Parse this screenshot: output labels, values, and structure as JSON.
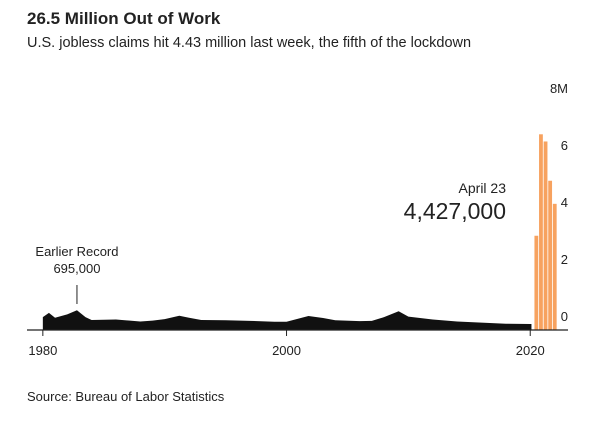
{
  "chart_data": {
    "type": "area",
    "title": "26.5 Million Out of Work",
    "subtitle": "U.S. jobless claims hit 4.43 million last week, the fifth of the lockdown",
    "source": "Source: Bureau of Labor Statistics",
    "annotations": [
      {
        "lines": [
          "Earlier Record",
          "695,000"
        ],
        "x": 1982.8
      },
      {
        "lines": [
          "April 23",
          "4,427,000"
        ]
      }
    ],
    "x": [
      1980,
      1980.5,
      1981,
      1982,
      1982.8,
      1983.5,
      1984,
      1986,
      1988,
      1989,
      1990,
      1991.2,
      1992,
      1993,
      1995,
      1997,
      1999,
      2000,
      2001.8,
      2003,
      2004,
      2006,
      2007,
      2008,
      2009.2,
      2010,
      2012,
      2014,
      2016,
      2018,
      2020,
      2020.1
    ],
    "values": [
      0.45,
      0.6,
      0.43,
      0.55,
      0.695,
      0.45,
      0.35,
      0.37,
      0.3,
      0.33,
      0.38,
      0.5,
      0.43,
      0.35,
      0.34,
      0.32,
      0.29,
      0.29,
      0.49,
      0.42,
      0.34,
      0.31,
      0.32,
      0.45,
      0.66,
      0.47,
      0.37,
      0.3,
      0.26,
      0.22,
      0.21,
      0.21
    ],
    "color": "#111111",
    "bars": {
      "values": [
        3.307,
        6.867,
        6.615,
        5.237,
        4.427
      ],
      "color": "#f7a25f"
    },
    "xlim": [
      1978.7,
      2023.1
    ],
    "xticks": [
      1980,
      2000,
      2020
    ],
    "ylim": [
      0,
      8
    ],
    "yticks": [
      0,
      2,
      4,
      6,
      {
        "value": 8,
        "label": "8M"
      }
    ]
  }
}
